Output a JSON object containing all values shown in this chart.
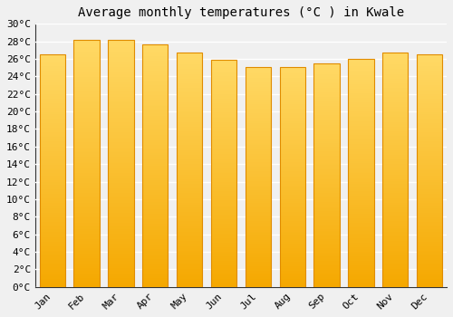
{
  "title": "Average monthly temperatures (°C ) in Kwale",
  "months": [
    "Jan",
    "Feb",
    "Mar",
    "Apr",
    "May",
    "Jun",
    "Jul",
    "Aug",
    "Sep",
    "Oct",
    "Nov",
    "Dec"
  ],
  "values": [
    26.5,
    28.2,
    28.2,
    27.7,
    26.7,
    25.9,
    25.1,
    25.1,
    25.5,
    26.0,
    26.7,
    26.5
  ],
  "bar_color_bottom": "#F5A800",
  "bar_color_top": "#FFD966",
  "bar_edge_color": "#E08C00",
  "ylim": [
    0,
    30
  ],
  "ytick_step": 2,
  "background_color": "#f0f0f0",
  "grid_color": "#ffffff",
  "title_fontsize": 10,
  "tick_fontsize": 8,
  "font_family": "monospace",
  "figsize": [
    5.0,
    3.5
  ],
  "dpi": 100
}
